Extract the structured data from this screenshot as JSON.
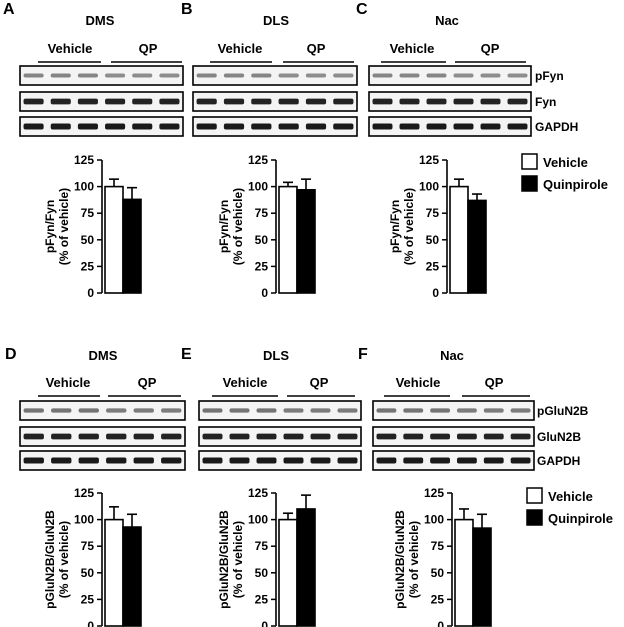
{
  "row_labels": {
    "top": [
      "pFyn",
      "Fyn",
      "GAPDH"
    ],
    "bottom": [
      "pGluN2B",
      "GluN2B",
      "GAPDH"
    ]
  },
  "groups": {
    "vehicle": "Vehicle",
    "qp": "QP"
  },
  "panels": [
    {
      "letter": "A",
      "region": "DMS"
    },
    {
      "letter": "B",
      "region": "DLS"
    },
    {
      "letter": "C",
      "region": "Nac"
    },
    {
      "letter": "D",
      "region": "DMS"
    },
    {
      "letter": "E",
      "region": "DLS"
    },
    {
      "letter": "F",
      "region": "Nac"
    }
  ],
  "legend": {
    "vehicle": "Vehicle",
    "quinpirole": "Quinpirole",
    "vehicle_fill": "#ffffff",
    "quinpirole_fill": "#000000"
  },
  "band_intensity": {
    "pFyn": {
      "vehicle": 0.35,
      "qp": 0.3
    },
    "Fyn": {
      "vehicle": 0.95,
      "qp": 0.95
    },
    "GAPDH": {
      "vehicle": 1.0,
      "qp": 1.0
    },
    "pGluN2B": {
      "vehicle": 0.45,
      "qp": 0.4
    },
    "GluN2B": {
      "vehicle": 0.95,
      "qp": 0.95
    }
  },
  "chart_data": [
    {
      "panel": "A",
      "type": "bar",
      "categories": [
        "Vehicle",
        "Quinpirole"
      ],
      "values": [
        100,
        88
      ],
      "errors": [
        7,
        11
      ],
      "ylabel": [
        "pFyn/Fyn",
        "(% of vehicle)"
      ],
      "yticks": [
        "0",
        "25",
        "50",
        "75",
        "100",
        "125"
      ],
      "ylim": [
        0,
        125
      ]
    },
    {
      "panel": "B",
      "type": "bar",
      "categories": [
        "Vehicle",
        "Quinpirole"
      ],
      "values": [
        100,
        97
      ],
      "errors": [
        4,
        10
      ],
      "ylabel": [
        "pFyn/Fyn",
        "(% of vehicle)"
      ],
      "yticks": [
        "0",
        "25",
        "50",
        "75",
        "100",
        "125"
      ],
      "ylim": [
        0,
        125
      ]
    },
    {
      "panel": "C",
      "type": "bar",
      "categories": [
        "Vehicle",
        "Quinpirole"
      ],
      "values": [
        100,
        87
      ],
      "errors": [
        7,
        6
      ],
      "ylabel": [
        "pFyn/Fyn",
        "(% of vehicle)"
      ],
      "yticks": [
        "0",
        "25",
        "50",
        "75",
        "100",
        "125"
      ],
      "ylim": [
        0,
        125
      ]
    },
    {
      "panel": "D",
      "type": "bar",
      "categories": [
        "Vehicle",
        "Quinpirole"
      ],
      "values": [
        100,
        93
      ],
      "errors": [
        12,
        12
      ],
      "ylabel": [
        "pGluN2B/GluN2B",
        "(% of vehicle)"
      ],
      "yticks": [
        "0",
        "25",
        "50",
        "75",
        "100",
        "125"
      ],
      "ylim": [
        0,
        125
      ]
    },
    {
      "panel": "E",
      "type": "bar",
      "categories": [
        "Vehicle",
        "Quinpirole"
      ],
      "values": [
        100,
        110
      ],
      "errors": [
        6,
        13
      ],
      "ylabel": [
        "pGluN2B/GluN2B",
        "(% of vehicle)"
      ],
      "yticks": [
        "0",
        "25",
        "50",
        "75",
        "100",
        "125"
      ],
      "ylim": [
        0,
        125
      ]
    },
    {
      "panel": "F",
      "type": "bar",
      "categories": [
        "Vehicle",
        "Quinpirole"
      ],
      "values": [
        100,
        92
      ],
      "errors": [
        10,
        13
      ],
      "ylabel": [
        "pGluN2B/GluN2B",
        "(% of vehicle)"
      ],
      "yticks": [
        "0",
        "25",
        "50",
        "75",
        "100",
        "125"
      ],
      "ylim": [
        0,
        125
      ]
    }
  ]
}
